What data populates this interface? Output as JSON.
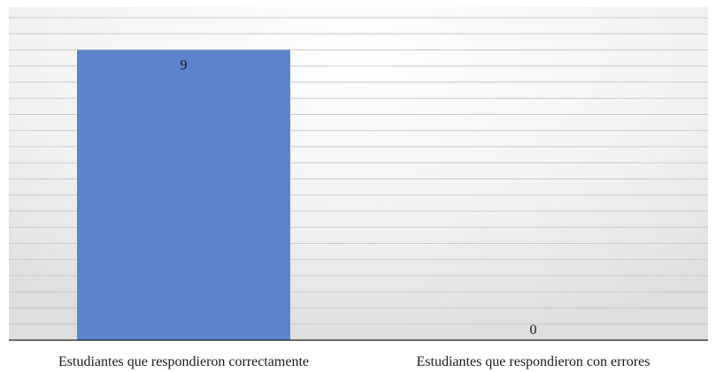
{
  "chart_data": {
    "type": "bar",
    "categories": [
      "Estudiantes que respondieron correctamente",
      "Estudiantes que respondieron con errores"
    ],
    "values": [
      9,
      0
    ],
    "data_labels": [
      "9",
      "0"
    ],
    "title": "",
    "xlabel": "",
    "ylabel": "",
    "ylim": [
      0,
      10
    ],
    "gridlines": true,
    "legend": "none",
    "bar_color": "#5b84cc",
    "background": "radial-gradient light gray"
  }
}
